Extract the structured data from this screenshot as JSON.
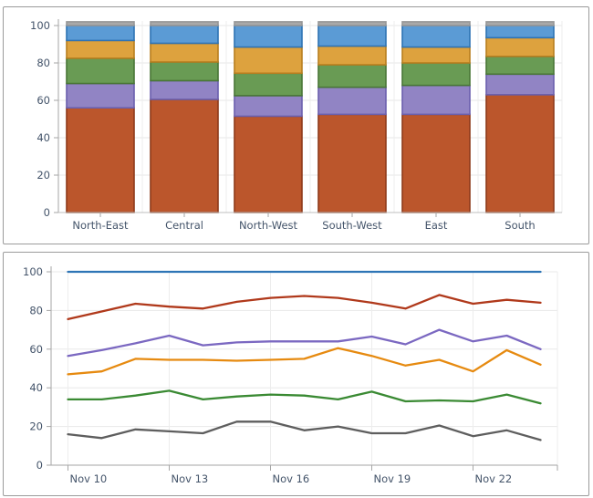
{
  "page": {
    "background": "#ffffff",
    "axis_label_color": "#44546a"
  },
  "chart_data": [
    {
      "type": "bar",
      "subtype": "stacked-column",
      "title": "",
      "categories": [
        "North-East",
        "Central",
        "North-West",
        "South-West",
        "East",
        "South"
      ],
      "series": [
        {
          "name": "rust",
          "color": "#bb562c",
          "border_color": "#8e3a1a",
          "values": [
            56,
            60.5,
            51.5,
            52.5,
            52.5,
            63
          ]
        },
        {
          "name": "purple",
          "color": "#9184c4",
          "border_color": "#6a5fad",
          "values": [
            13,
            10,
            11,
            14.5,
            15.5,
            11
          ]
        },
        {
          "name": "green",
          "color": "#699b54",
          "border_color": "#497636",
          "values": [
            13.5,
            10,
            12,
            12,
            12,
            9.5
          ]
        },
        {
          "name": "orange",
          "color": "#dda23e",
          "border_color": "#b87e1f",
          "values": [
            9.5,
            10,
            14,
            10,
            8.5,
            10
          ]
        },
        {
          "name": "blue",
          "color": "#5b9bd5",
          "border_color": "#2e73b4",
          "values": [
            8,
            9.5,
            11.5,
            11,
            11.5,
            6.5
          ]
        },
        {
          "name": "gray-cap",
          "color": "#a9a9a9",
          "border_color": "#979797",
          "values": [
            2,
            2,
            2,
            2,
            2,
            2
          ]
        }
      ],
      "ylim": [
        0,
        100
      ],
      "yticks": [
        0,
        20,
        40,
        60,
        80,
        100
      ],
      "grid": true,
      "legend": "none"
    },
    {
      "type": "line",
      "title": "",
      "n_points": 15,
      "x_tick_labels": [
        "Nov 10",
        "Nov 13",
        "Nov 16",
        "Nov 19",
        "Nov 22"
      ],
      "x_tick_indices": [
        0,
        3,
        6,
        9,
        12
      ],
      "series": [
        {
          "name": "blue",
          "color": "#2e75b6",
          "values": [
            100,
            100,
            100,
            100,
            100,
            100,
            100,
            100,
            100,
            100,
            100,
            100,
            100,
            100,
            100
          ]
        },
        {
          "name": "red",
          "color": "#b0391b",
          "values": [
            75.5,
            79.5,
            83.5,
            82,
            81,
            84.5,
            86.5,
            87.5,
            86.5,
            84,
            81,
            88,
            83.5,
            85.5,
            84
          ]
        },
        {
          "name": "purple",
          "color": "#7b68c1",
          "values": [
            56.5,
            59.5,
            63,
            67,
            62,
            63.5,
            64,
            64,
            64,
            66.5,
            62.5,
            70,
            64,
            67,
            60
          ]
        },
        {
          "name": "orange",
          "color": "#e68a10",
          "values": [
            47,
            48.5,
            55,
            54.5,
            54.5,
            54,
            54.5,
            55,
            60.5,
            56.5,
            51.5,
            54.5,
            48.5,
            59.5,
            52
          ]
        },
        {
          "name": "green",
          "color": "#3a8a33",
          "values": [
            34,
            34,
            36,
            38.5,
            34,
            35.5,
            36.5,
            36,
            34,
            38,
            33,
            33.5,
            33,
            36.5,
            32
          ]
        },
        {
          "name": "gray",
          "color": "#5e5e5e",
          "values": [
            16,
            14,
            18.5,
            17.5,
            16.5,
            22.5,
            22.5,
            18,
            20,
            16.5,
            16.5,
            20.5,
            15,
            18,
            13
          ]
        }
      ],
      "ylim": [
        0,
        100
      ],
      "yticks": [
        0,
        20,
        40,
        60,
        80,
        100
      ],
      "grid": true,
      "legend": "none"
    }
  ]
}
